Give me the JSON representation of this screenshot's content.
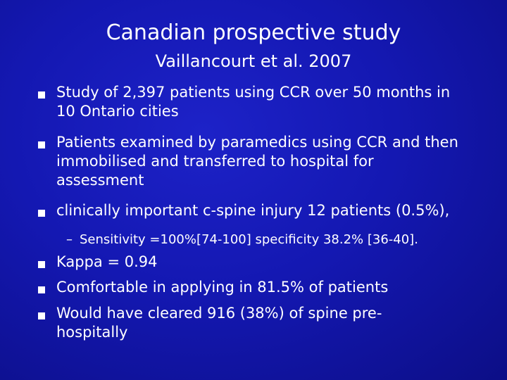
{
  "slide": {
    "title": "Canadian prospective study",
    "subtitle": "Vaillancourt et al. 2007",
    "bullets": [
      "Study of 2,397 patients using CCR over 50 months in 10 Ontario cities",
      "Patients examined by paramedics using CCR and then immobilised and transferred to hospital for assessment",
      "clinically important c-spine injury 12 patients (0.5%),",
      "Kappa = 0.94",
      "Comfortable in applying in 81.5% of patients",
      "Would have cleared 916 (38%) of spine pre-hospitally"
    ],
    "bullets_display": [
      [
        "Study of 2,397 patients using CCR over 50 months in",
        "10 Ontario cities"
      ],
      [
        "Patients examined by paramedics using CCR and then",
        "immobilised and transferred to hospital for",
        "assessment"
      ],
      [
        "clinically important c-spine injury 12 patients (0.5%),"
      ],
      [
        "Kappa = 0.94"
      ],
      [
        "Comfortable in applying in 81.5% of patients"
      ],
      [
        "Would have cleared 916 (38%) of spine pre-",
        "hospitally"
      ]
    ],
    "sub_bullet": {
      "dash": "–",
      "text": "Sensitivity =100%[74-100] specificity 38.2% [36-40]."
    },
    "colors": {
      "background": "#1418b2",
      "text": "#ffffff",
      "bullet": "#ffffff"
    },
    "bullet_icon": "square-bullet"
  }
}
